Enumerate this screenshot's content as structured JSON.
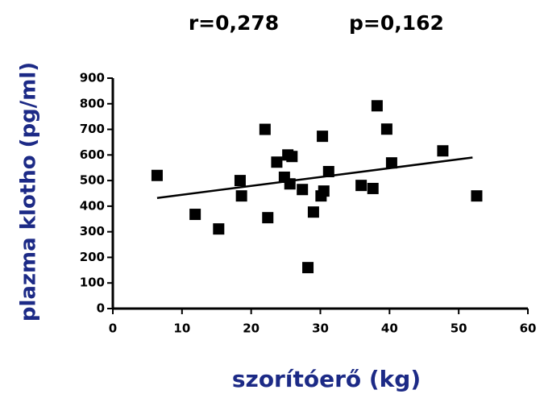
{
  "chart_data": {
    "type": "scatter",
    "title_r": "r=0,278",
    "title_p": "p=0,162",
    "xlabel": "szorítóerő (kg)",
    "ylabel": "plazma klotho (pg/ml)",
    "color": "#000000",
    "label_color": "#1c2a86",
    "xlim": [
      0,
      60
    ],
    "xticks": [
      0,
      10,
      20,
      30,
      40,
      50,
      60
    ],
    "ylim": [
      0,
      900
    ],
    "yticks": [
      0,
      100,
      200,
      300,
      400,
      500,
      600,
      700,
      800,
      900
    ],
    "x": [
      6.4,
      11.9,
      15.3,
      18.4,
      18.6,
      22,
      22.4,
      23.7,
      24.8,
      25.3,
      25.9,
      25.6,
      27.4,
      28.2,
      29,
      30.1,
      30.3,
      30.5,
      31.2,
      35.9,
      37.6,
      38.2,
      39.6,
      40.3,
      47.7,
      52.6
    ],
    "y": [
      520,
      368,
      311,
      500,
      440,
      700,
      355,
      572,
      513,
      600,
      594,
      487,
      465,
      160,
      377,
      440,
      673,
      459,
      535,
      481,
      469,
      792,
      701,
      569,
      616,
      440
    ],
    "trendline": {
      "x": [
        6.4,
        52
      ],
      "y": [
        432,
        590
      ]
    }
  }
}
